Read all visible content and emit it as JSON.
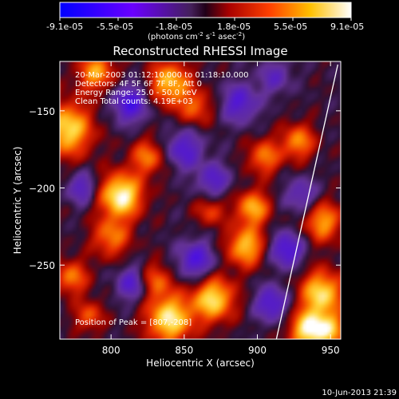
{
  "colorbar": {
    "ticks": [
      "-9.1e-05",
      "-5.5e-05",
      "-1.8e-05",
      "1.8e-05",
      "5.5e-05",
      "9.1e-05"
    ],
    "unit_prefix": "(photons cm",
    "unit_exp1": "-2",
    "unit_mid": " s",
    "unit_exp2": "-1",
    "unit_suffix": " asec",
    "unit_exp3": "-2",
    "unit_close": ")",
    "min": -9.1e-05,
    "max": 9.1e-05
  },
  "info": {
    "line1": "20-Mar-2003 01:12:10.000 to 01:18:10.000",
    "line2": "Detectors: 4F 5F 6F 7F 8F, Att 0",
    "line3": "Energy Range: 25.0 - 50.0 keV",
    "line4": "Clean    Total counts: 4.19E+03",
    "peak": "Position of Peak = [807,-208]"
  },
  "footer": {
    "timestamp": "10-Jun-2013 21:39"
  },
  "chart_data": {
    "type": "heatmap",
    "title": "Reconstructed RHESSI Image",
    "xlabel": "Heliocentric X (arcsec)",
    "ylabel": "Heliocentric Y (arcsec)",
    "xlim": [
      765,
      957
    ],
    "ylim": [
      -298,
      -118
    ],
    "xticks": [
      800,
      850,
      900,
      950
    ],
    "yticks": [
      -150,
      -200,
      -250
    ],
    "peak": [
      807,
      -208
    ],
    "hot_spots": [
      {
        "x": 807,
        "y": -205,
        "amp": 1.0,
        "s": 10
      },
      {
        "x": 800,
        "y": -232,
        "amp": 0.55,
        "s": 9
      },
      {
        "x": 770,
        "y": -162,
        "amp": 0.85,
        "s": 12
      },
      {
        "x": 790,
        "y": -125,
        "amp": 0.65,
        "s": 9
      },
      {
        "x": 840,
        "y": -132,
        "amp": 0.75,
        "s": 10
      },
      {
        "x": 858,
        "y": -148,
        "amp": 0.45,
        "s": 8
      },
      {
        "x": 840,
        "y": -285,
        "amp": 0.9,
        "s": 11
      },
      {
        "x": 870,
        "y": -272,
        "amp": 0.85,
        "s": 10
      },
      {
        "x": 892,
        "y": -238,
        "amp": 0.75,
        "s": 9
      },
      {
        "x": 897,
        "y": -213,
        "amp": 0.7,
        "s": 8
      },
      {
        "x": 905,
        "y": -180,
        "amp": 0.55,
        "s": 8
      },
      {
        "x": 944,
        "y": -268,
        "amp": 0.85,
        "s": 10
      },
      {
        "x": 935,
        "y": -292,
        "amp": 0.9,
        "s": 9
      },
      {
        "x": 950,
        "y": -292,
        "amp": 0.6,
        "s": 8
      },
      {
        "x": 945,
        "y": -222,
        "amp": 0.65,
        "s": 9
      },
      {
        "x": 928,
        "y": -170,
        "amp": 0.6,
        "s": 8
      },
      {
        "x": 825,
        "y": -180,
        "amp": 0.55,
        "s": 8
      },
      {
        "x": 773,
        "y": -258,
        "amp": 0.55,
        "s": 8
      },
      {
        "x": 830,
        "y": -260,
        "amp": 0.5,
        "s": 8
      },
      {
        "x": 868,
        "y": -215,
        "amp": 0.4,
        "s": 7
      },
      {
        "x": 785,
        "y": -283,
        "amp": 0.45,
        "s": 7
      }
    ],
    "cold_spots": [
      {
        "x": 813,
        "y": -145,
        "amp": 0.6,
        "s": 9
      },
      {
        "x": 850,
        "y": -175,
        "amp": 0.5,
        "s": 9
      },
      {
        "x": 888,
        "y": -145,
        "amp": 0.5,
        "s": 9
      },
      {
        "x": 870,
        "y": -195,
        "amp": 0.45,
        "s": 8
      },
      {
        "x": 858,
        "y": -247,
        "amp": 0.55,
        "s": 9
      },
      {
        "x": 815,
        "y": -262,
        "amp": 0.5,
        "s": 8
      },
      {
        "x": 920,
        "y": -240,
        "amp": 0.6,
        "s": 8
      },
      {
        "x": 910,
        "y": -275,
        "amp": 0.55,
        "s": 8
      },
      {
        "x": 780,
        "y": -200,
        "amp": 0.45,
        "s": 7
      },
      {
        "x": 930,
        "y": -205,
        "amp": 0.4,
        "s": 8
      },
      {
        "x": 912,
        "y": -128,
        "amp": 0.35,
        "s": 8
      }
    ],
    "limb_points": [
      [
        913,
        -298
      ],
      [
        955,
        -120
      ]
    ]
  }
}
